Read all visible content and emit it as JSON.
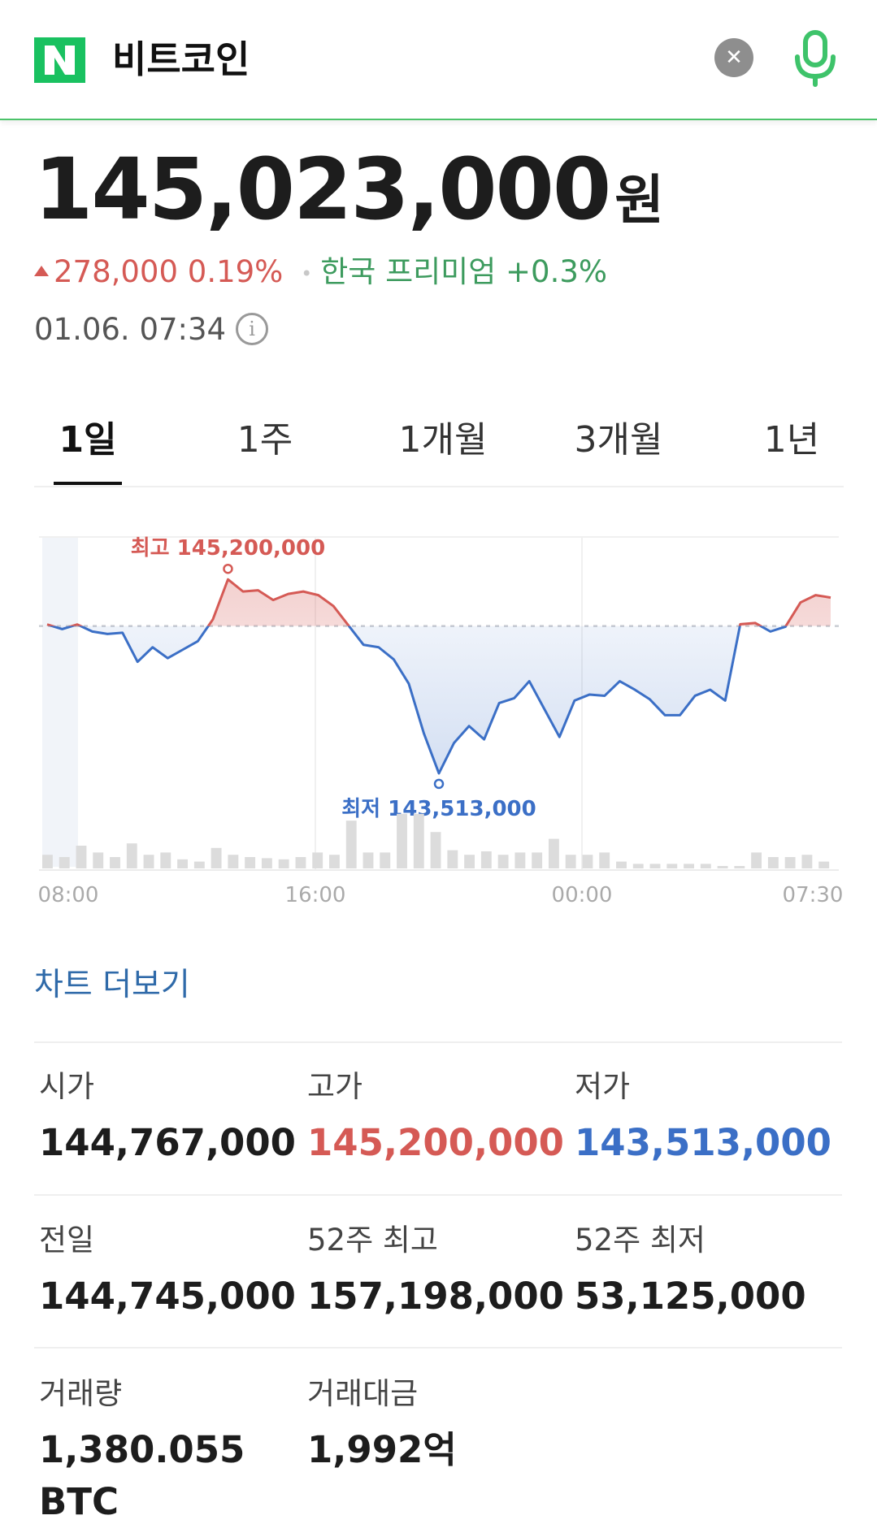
{
  "search": {
    "query": "비트코인"
  },
  "price": {
    "value": "145,023,000",
    "unit": "원"
  },
  "change": {
    "amount": "278,000",
    "percent": "0.19%",
    "premium_label": "한국 프리미엄",
    "premium_value": "+0.3%"
  },
  "timestamp": "01.06. 07:34",
  "tabs": [
    "1일",
    "1주",
    "1개월",
    "3개월",
    "1년"
  ],
  "active_tab": "1일",
  "chart_data": {
    "type": "line",
    "x_ticks": [
      "08:00",
      "16:00",
      "00:00",
      "07:30"
    ],
    "baseline": 144745000,
    "high_label": "최고 145,200,000",
    "low_label": "최저 143,513,000",
    "high": 145200000,
    "low": 143513000,
    "series": [
      {
        "values": [
          144758000,
          144720000,
          144758000,
          144700000,
          144680000,
          144690000,
          144450000,
          144570000,
          144480000,
          144550000,
          144620000,
          144800000,
          145130000,
          145030000,
          145040000,
          144960000,
          145010000,
          145030000,
          145000000,
          144910000,
          144750000,
          144590000,
          144570000,
          144470000,
          144270000,
          143860000,
          143530000,
          143780000,
          143920000,
          143810000,
          144110000,
          144150000,
          144290000,
          144060000,
          143830000,
          144130000,
          144180000,
          144170000,
          144290000,
          144220000,
          144140000,
          144010000,
          144010000,
          144170000,
          144220000,
          144130000,
          144760000,
          144770000,
          144700000,
          144740000,
          144940000,
          145000000,
          144980000
        ]
      },
      {
        "values": [
          0.12,
          0.1,
          0.2,
          0.14,
          0.1,
          0.22,
          0.12,
          0.14,
          0.08,
          0.06,
          0.18,
          0.12,
          0.1,
          0.09,
          0.08,
          0.1,
          0.14,
          0.12,
          0.42,
          0.14,
          0.14,
          0.48,
          0.48,
          0.32,
          0.16,
          0.12,
          0.15,
          0.12,
          0.14,
          0.14,
          0.26,
          0.12,
          0.12,
          0.14,
          0.06,
          0.04,
          0.04,
          0.04,
          0.04,
          0.04,
          0.02,
          0.02,
          0.14,
          0.1,
          0.1,
          0.12,
          0.06
        ]
      }
    ]
  },
  "chart_more": "차트 더보기",
  "stats": [
    {
      "label": "시가",
      "value": "144,767,000",
      "color": "#1d1d1d"
    },
    {
      "label": "고가",
      "value": "145,200,000",
      "color": "#d55a55"
    },
    {
      "label": "저가",
      "value": "143,513,000",
      "color": "#3b6fc6"
    },
    {
      "label": "전일",
      "value": "144,745,000",
      "color": "#1d1d1d"
    },
    {
      "label": "52주 최고",
      "value": "157,198,000",
      "color": "#1d1d1d"
    },
    {
      "label": "52주 최저",
      "value": "53,125,000",
      "color": "#1d1d1d"
    },
    {
      "label": "거래량",
      "value": "1,380.055",
      "value2": "BTC",
      "color": "#1d1d1d"
    },
    {
      "label": "거래대금",
      "value": "1,992억",
      "color": "#1d1d1d"
    }
  ],
  "colors": {
    "up": "#d55a55",
    "down": "#3b6fc6",
    "premium": "#3d9b5e",
    "brand": "#19c160"
  }
}
